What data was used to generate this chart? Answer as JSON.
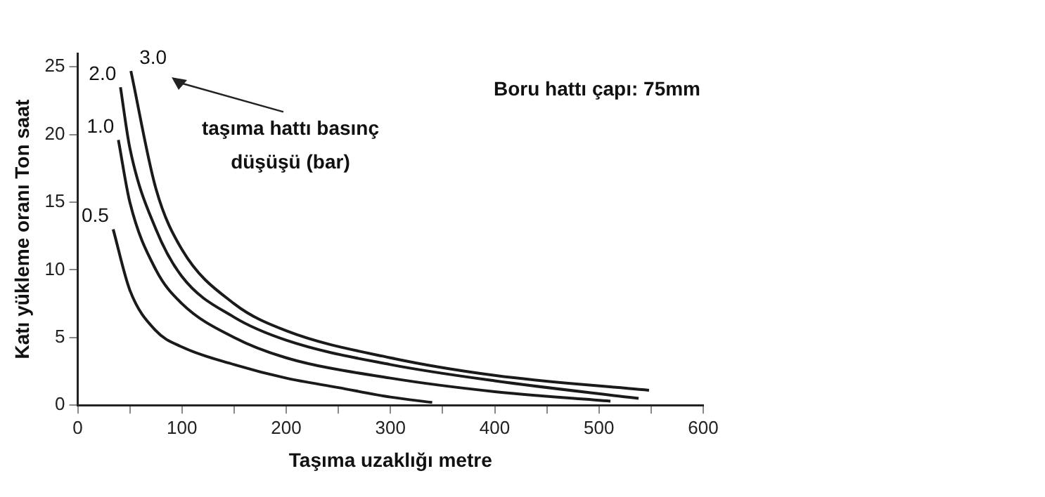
{
  "chart_data": {
    "type": "line",
    "xlabel": "Taşıma uzaklığı metre",
    "ylabel": "Katı yükleme oranı Ton saat",
    "annotations": [
      "taşıma hattı basınç düşüşü (bar)",
      "Boru hattı çapı: 75mm"
    ],
    "xlim": [
      0,
      600
    ],
    "xticks": [
      0,
      {
        "value": 50,
        "label": null
      },
      100,
      {
        "value": 150,
        "label": null
      },
      200,
      {
        "value": 250,
        "label": null
      },
      300,
      {
        "value": 350,
        "label": null
      },
      400,
      {
        "value": 450,
        "label": null
      },
      500,
      {
        "value": 550,
        "label": null
      },
      600
    ],
    "ylim": [
      0,
      26
    ],
    "yticks": [
      0,
      5,
      10,
      15,
      20,
      25
    ],
    "grid": false,
    "legend": false,
    "marker": "none",
    "line_style": "solid",
    "series": [
      {
        "name": "0.5",
        "color": "#1a1a1a",
        "x": [
          34,
          50,
          75,
          100,
          150,
          200,
          250,
          300,
          340
        ],
        "values": [
          13,
          8.5,
          5.5,
          4.3,
          3,
          2,
          1.3,
          0.6,
          0.2
        ]
      },
      {
        "name": "1.0",
        "color": "#1a1a1a",
        "x": [
          39,
          50,
          75,
          100,
          150,
          200,
          300,
          400,
          511
        ],
        "values": [
          19.6,
          15,
          10,
          7.5,
          5,
          3.5,
          2,
          1,
          0.3
        ]
      },
      {
        "name": "2.0",
        "color": "#1a1a1a",
        "x": [
          41,
          50,
          75,
          100,
          150,
          200,
          300,
          400,
          538
        ],
        "values": [
          23.5,
          19,
          13,
          9.5,
          6.5,
          4.8,
          3,
          1.8,
          0.5
        ]
      },
      {
        "name": "3.0",
        "color": "#1a1a1a",
        "x": [
          51,
          75,
          100,
          150,
          200,
          300,
          400,
          548
        ],
        "values": [
          24.7,
          16,
          11.5,
          7.5,
          5.5,
          3.5,
          2.2,
          1.1
        ]
      }
    ]
  }
}
